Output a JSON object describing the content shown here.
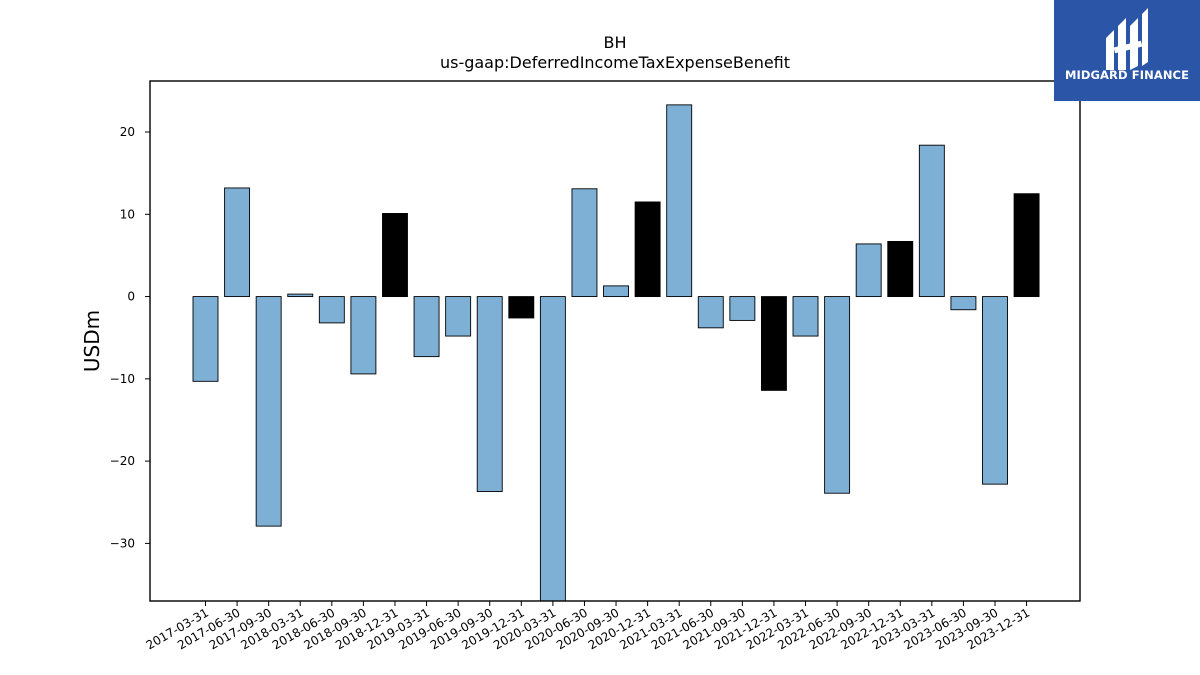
{
  "brand": {
    "name": "MIDGARD FINANCE",
    "bg_color": "#2b56a8",
    "icon": "midgard-logo-icon"
  },
  "colors": {
    "bar_normal": "#7eb0d5",
    "bar_highlight": "#000000"
  },
  "chart_data": {
    "type": "bar",
    "title": "BH",
    "subtitle": "us-gaap:DeferredIncomeTaxExpenseBenefit",
    "xlabel": "",
    "ylabel": "USDm",
    "ylim": [
      -37,
      26.2
    ],
    "yticks": [
      -30,
      -20,
      -10,
      0,
      10,
      20
    ],
    "grid": false,
    "categories": [
      "2017-03-31",
      "2017-06-30",
      "2017-09-30",
      "2018-03-31",
      "2018-06-30",
      "2018-09-30",
      "2018-12-31",
      "2019-03-31",
      "2019-06-30",
      "2019-09-30",
      "2019-12-31",
      "2020-03-31",
      "2020-06-30",
      "2020-09-30",
      "2020-12-31",
      "2021-03-31",
      "2021-06-30",
      "2021-09-30",
      "2021-12-31",
      "2022-03-31",
      "2022-06-30",
      "2022-09-30",
      "2022-12-31",
      "2023-03-31",
      "2023-06-30",
      "2023-09-30",
      "2023-12-31"
    ],
    "values": [
      -10.3,
      13.2,
      -27.9,
      0.3,
      -3.2,
      -9.4,
      10.1,
      -7.3,
      -4.8,
      -23.7,
      -2.6,
      -37.0,
      13.1,
      1.3,
      11.5,
      23.3,
      -3.8,
      -2.9,
      -11.4,
      -4.8,
      -23.9,
      6.4,
      6.7,
      18.4,
      -1.6,
      -22.8,
      12.5
    ],
    "highlight": [
      false,
      false,
      false,
      false,
      false,
      false,
      true,
      false,
      false,
      false,
      true,
      false,
      false,
      false,
      true,
      false,
      false,
      false,
      true,
      false,
      false,
      false,
      true,
      false,
      false,
      false,
      true
    ]
  }
}
